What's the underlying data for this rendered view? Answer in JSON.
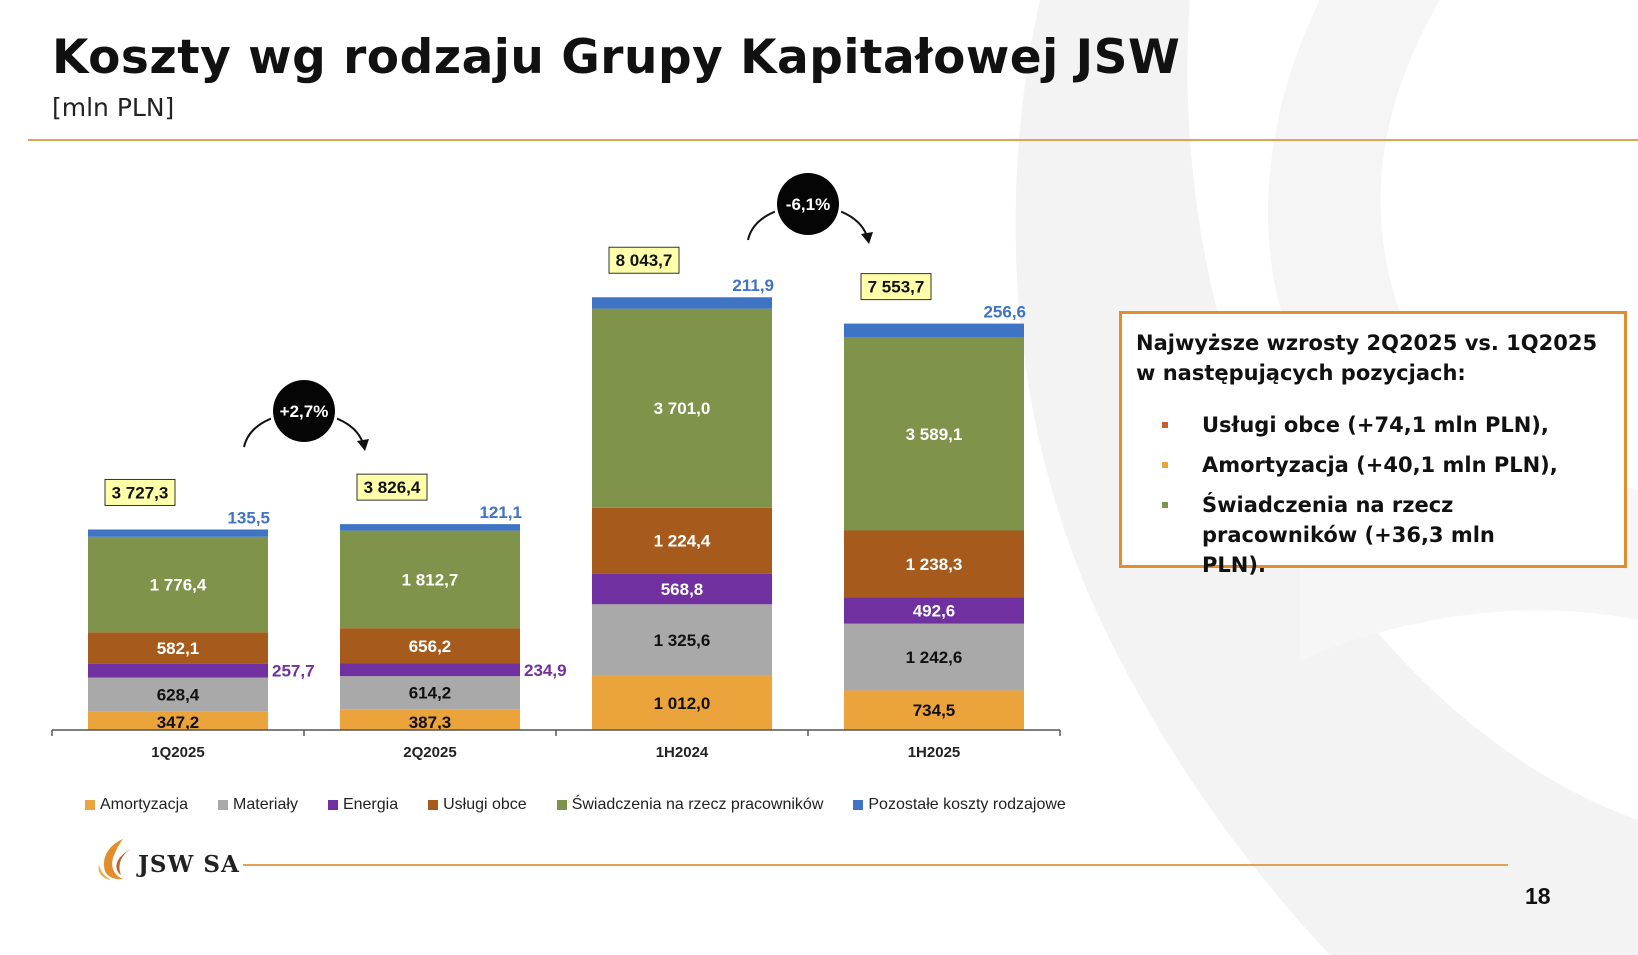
{
  "header": {
    "title": "Koszty wg rodzaju Grupy Kapitałowej JSW",
    "subtitle": "[mln PLN]"
  },
  "chart_data": {
    "type": "bar",
    "stacked": true,
    "categories": [
      "1Q2025",
      "2Q2025",
      "1H2024",
      "1H2025"
    ],
    "series": [
      {
        "name": "Amortyzacja",
        "color": "#eba43c",
        "values": [
          347.2,
          387.3,
          1012.0,
          734.5
        ],
        "labels": [
          "347,2",
          "387,3",
          "1 012,0",
          "734,5"
        ]
      },
      {
        "name": "Materiały",
        "color": "#a9a9a9",
        "values": [
          628.4,
          614.2,
          1325.6,
          1242.6
        ],
        "labels": [
          "628,4",
          "614,2",
          "1 325,6",
          "1 242,6"
        ]
      },
      {
        "name": "Energia",
        "color": "#7030a0",
        "values": [
          257.7,
          234.9,
          568.8,
          492.6
        ],
        "labels": [
          "257,7",
          "234,9",
          "568,8",
          "492,6"
        ]
      },
      {
        "name": "Usługi obce",
        "color": "#a65b1d",
        "values": [
          582.1,
          656.2,
          1224.4,
          1238.3
        ],
        "labels": [
          "582,1",
          "656,2",
          "1 224,4",
          "1 238,3"
        ]
      },
      {
        "name": "Świadczenia na rzecz pracowników",
        "color": "#7f944a",
        "values": [
          1776.4,
          1812.7,
          3701.0,
          3589.1
        ],
        "labels": [
          "1 776,4",
          "1 812,7",
          "3 701,0",
          "3 589,1"
        ]
      },
      {
        "name": "Pozostałe koszty rodzajowe",
        "color": "#3f73c4",
        "values": [
          135.5,
          121.1,
          211.9,
          256.6
        ],
        "labels": [
          "135,5",
          "121,1",
          "211,9",
          "256,6"
        ]
      }
    ],
    "totals": [
      3727.3,
      3826.4,
      8043.7,
      7553.7
    ],
    "total_labels": [
      "3 727,3",
      "3 826,4",
      "8 043,7",
      "7 553,7"
    ],
    "changes": [
      {
        "label": "+2,7%",
        "from": "1Q2025",
        "to": "2Q2025"
      },
      {
        "label": "-6,1%",
        "from": "1H2024",
        "to": "1H2025"
      }
    ],
    "legend_position": "bottom",
    "grid": false
  },
  "info_box": {
    "heading_line1": "Najwyższe wzrosty 2Q2025 vs. 1Q2025",
    "heading_line2": "w następujących pozycjach:",
    "items": [
      {
        "text": "Usługi obce (+74,1 mln PLN),",
        "color": "#c0602a"
      },
      {
        "text": "Amortyzacja (+40,1 mln PLN),",
        "color": "#eba43c"
      },
      {
        "text": "Świadczenia na rzecz pracowników (+36,3 mln PLN).",
        "color": "#7f944a"
      }
    ]
  },
  "footer": {
    "logo_text": "JSW SA",
    "page_number": "18"
  },
  "colors": {
    "accent": "#e0a255",
    "box_border": "#e38d2c",
    "total_label_bg": "#ffffaa"
  }
}
